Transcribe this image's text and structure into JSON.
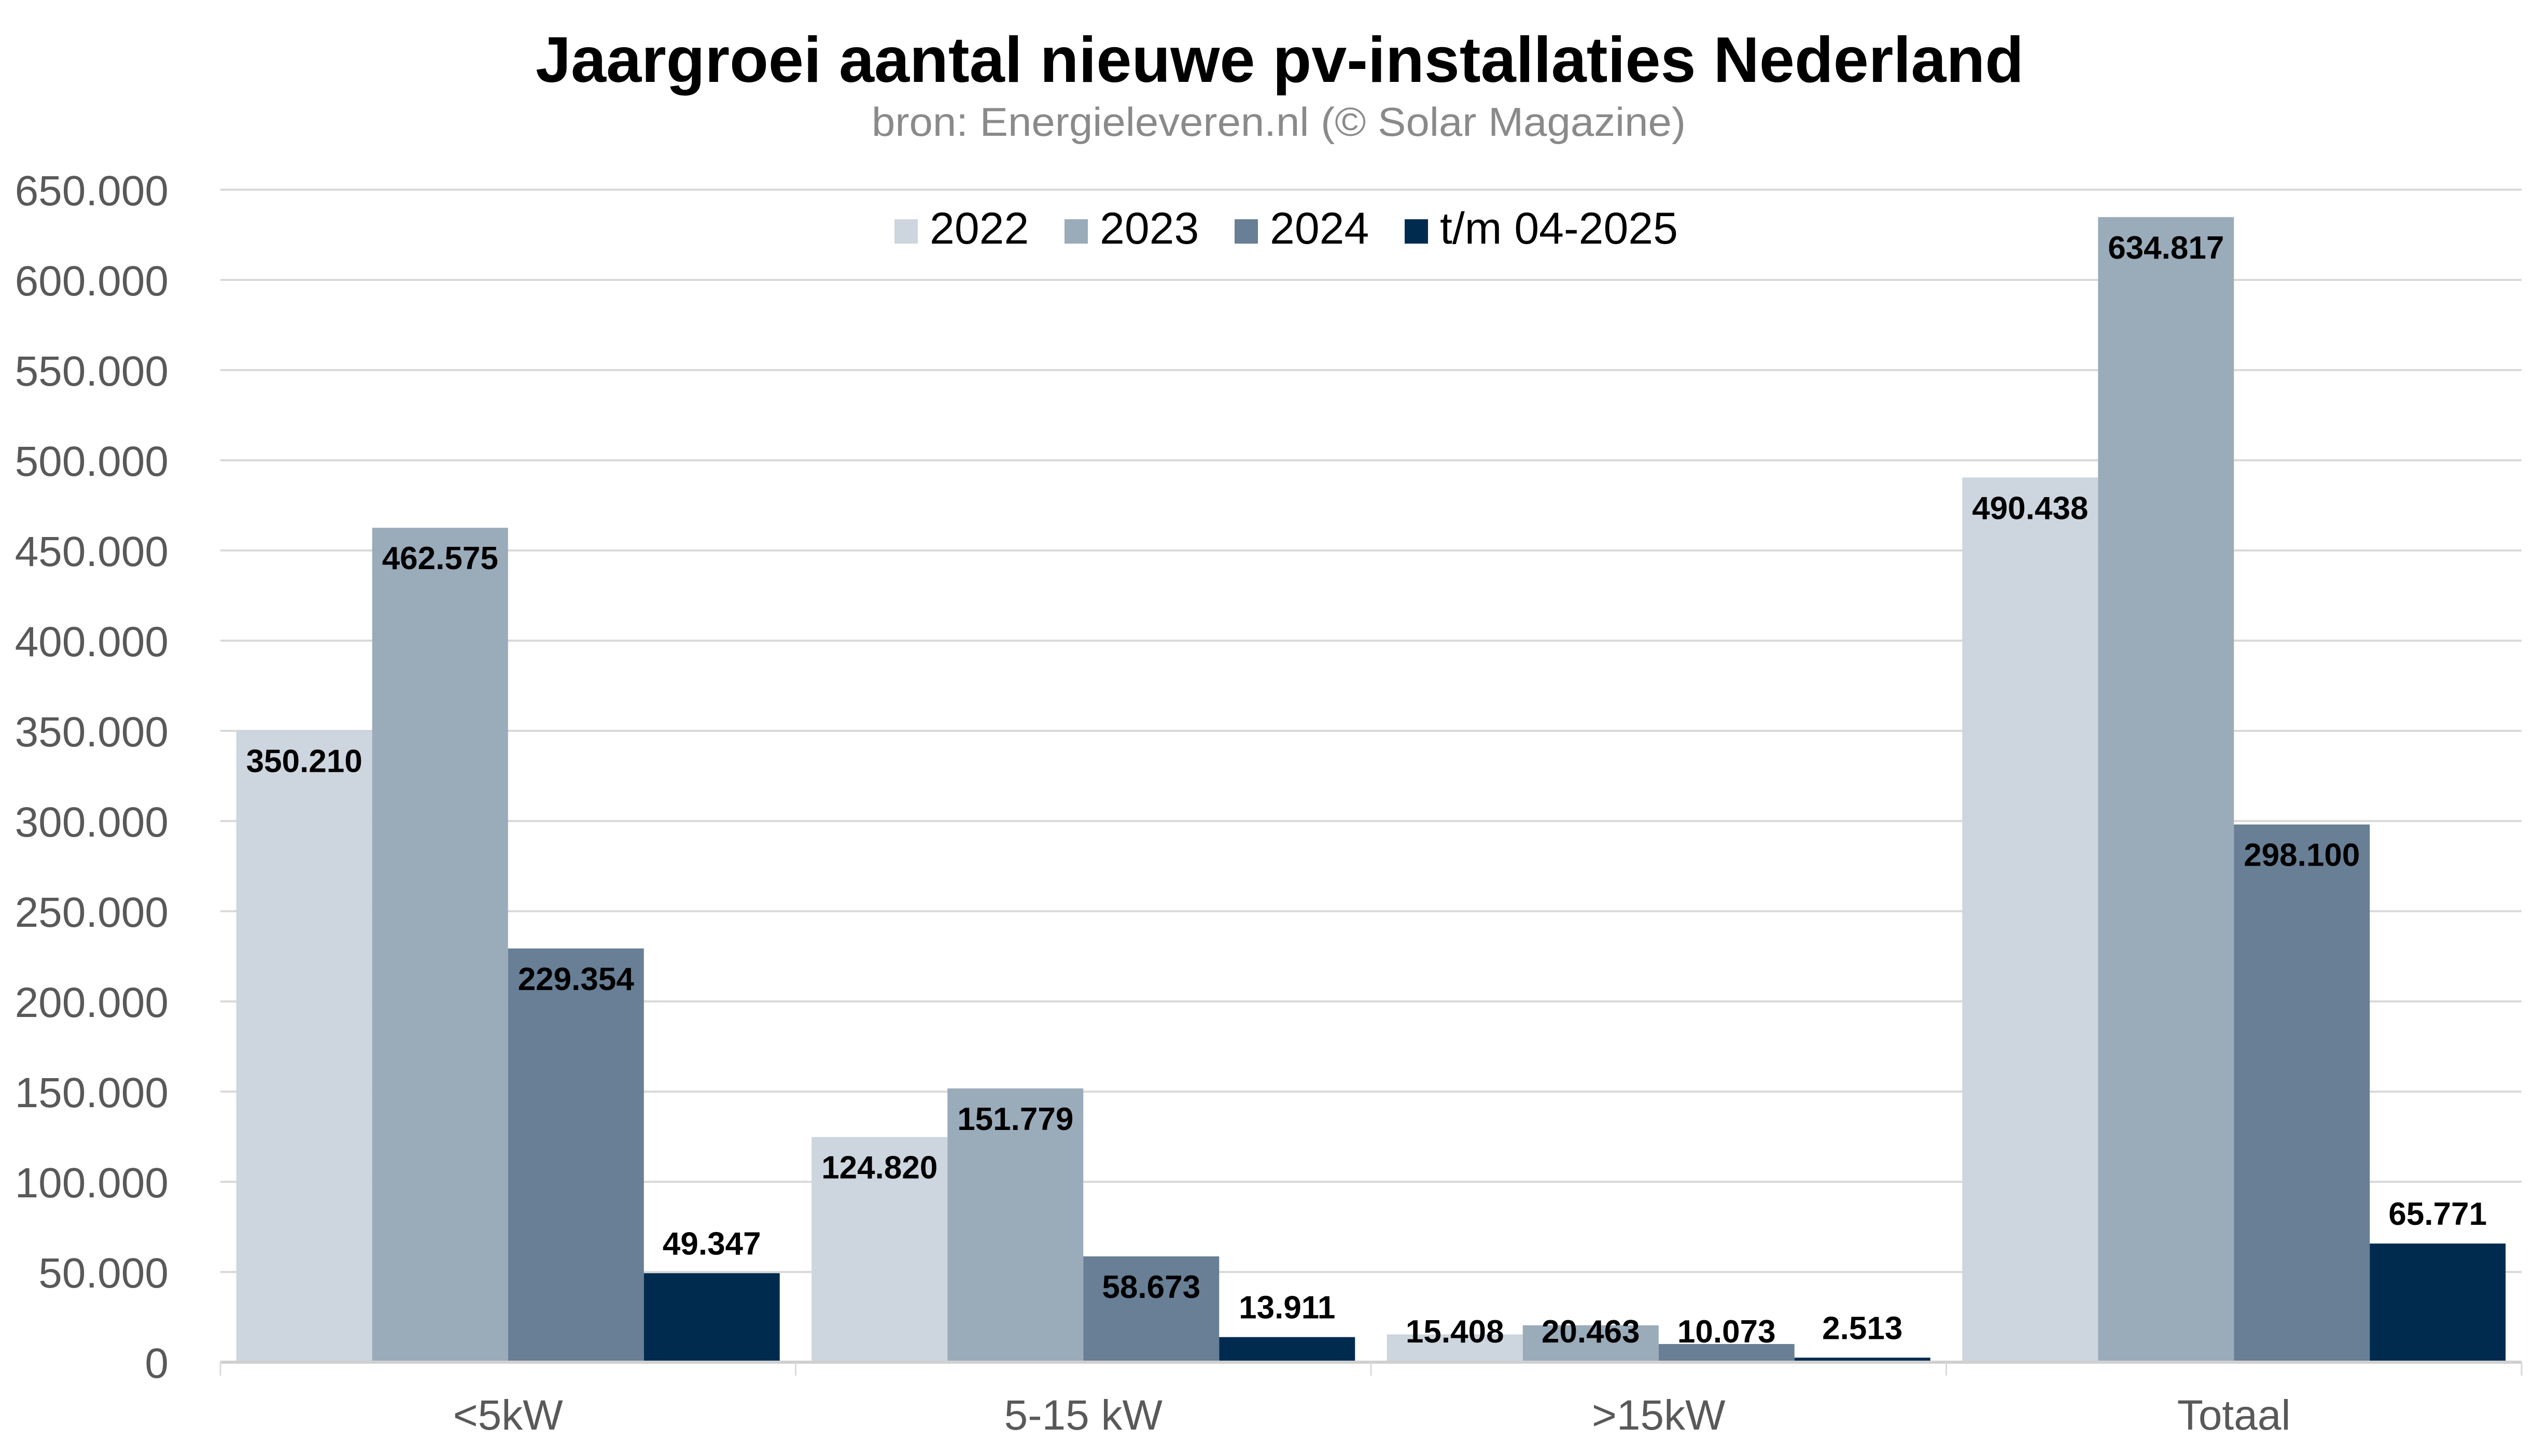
{
  "chart_data": {
    "type": "bar",
    "title": "Jaargroei aantal nieuwe pv-installaties Nederland",
    "subtitle": "bron: Energieleveren.nl (© Solar Magazine)",
    "xlabel": "",
    "ylabel": "",
    "categories": [
      "<5kW",
      "5-15 kW",
      ">15kW",
      "Totaal"
    ],
    "series": [
      {
        "name": "2022",
        "color": "#cdd5de",
        "values": [
          350210,
          124820,
          15408,
          490438
        ],
        "labels": [
          "350.210",
          "124.820",
          "15.408",
          "490.438"
        ],
        "label_position": "inside-end"
      },
      {
        "name": "2023",
        "color": "#9aabba",
        "values": [
          462575,
          151779,
          20463,
          634817
        ],
        "labels": [
          "462.575",
          "151.779",
          "20.463",
          "634.817"
        ],
        "label_position": "inside-end"
      },
      {
        "name": "2024",
        "color": "#687f95",
        "values": [
          229354,
          58673,
          10073,
          298100
        ],
        "labels": [
          "229.354",
          "58.673",
          "10.073",
          "298.100"
        ],
        "label_position": "inside-end"
      },
      {
        "name": "t/m 04-2025",
        "color": "#002b4f",
        "values": [
          49347,
          13911,
          2513,
          65771
        ],
        "labels": [
          "49.347",
          "13.911",
          "2.513",
          "65.771"
        ],
        "label_position": "outside-end"
      }
    ],
    "ylim": [
      0,
      650000
    ],
    "yticks": [
      0,
      50000,
      100000,
      150000,
      200000,
      250000,
      300000,
      350000,
      400000,
      450000,
      500000,
      550000,
      600000,
      650000
    ],
    "ytick_labels": [
      "0",
      "50.000",
      "100.000",
      "150.000",
      "200.000",
      "250.000",
      "300.000",
      "350.000",
      "400.000",
      "450.000",
      "500.000",
      "550.000",
      "600.000",
      "650.000"
    ],
    "grid": true,
    "legend_position": "top-center"
  }
}
